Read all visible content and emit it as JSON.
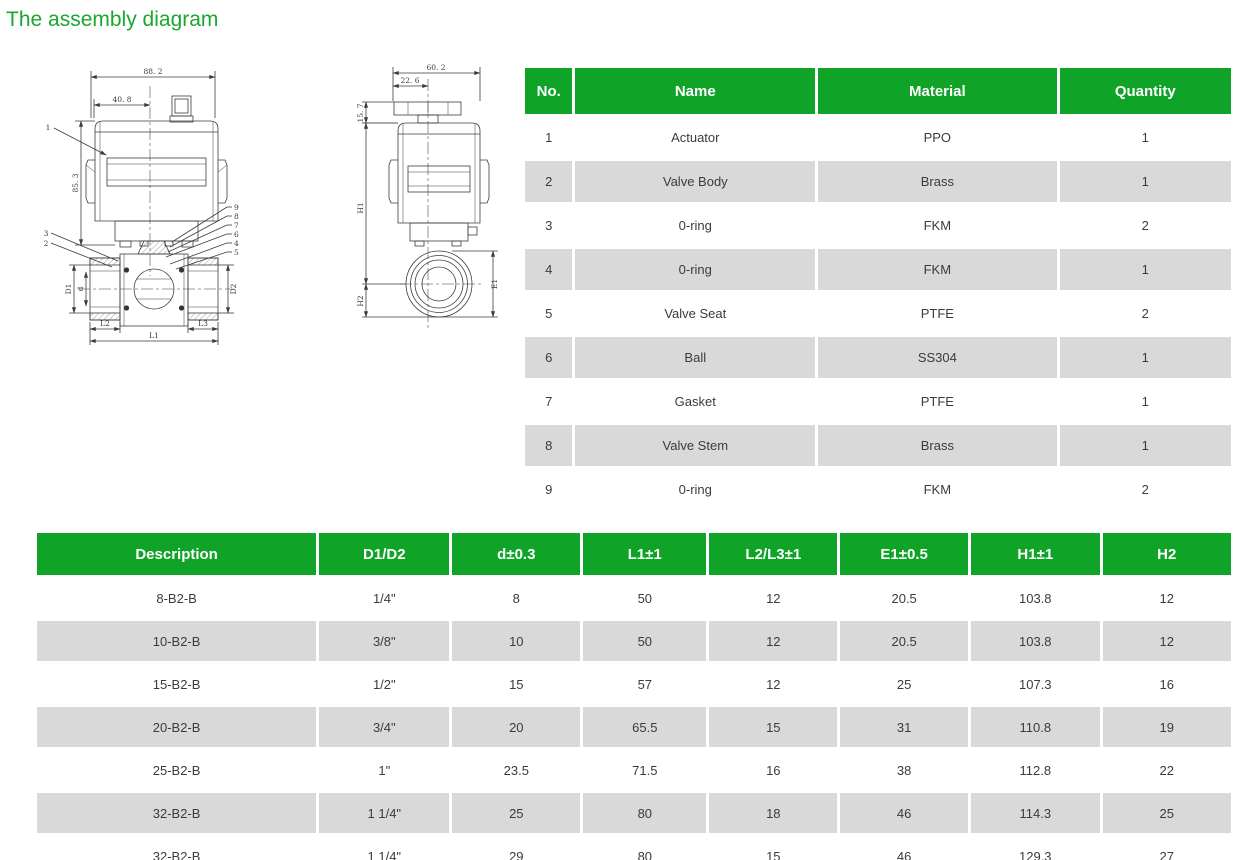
{
  "page": {
    "title": "The assembly diagram"
  },
  "colors": {
    "title_green": "#1aa72f",
    "header_green": "#0fa328",
    "row_gray": "#d9d9d9",
    "row_white": "#ffffff",
    "line_dark": "#3c3c3c"
  },
  "drawings": {
    "front_view": {
      "dim_width": "88. 2",
      "dim_half_width": "40. 8",
      "dim_height": "85. 3",
      "label_d1": "D1",
      "label_d": "d",
      "label_d2": "D2",
      "label_l2": "L2",
      "label_l3": "L3",
      "label_l1": "L1",
      "callouts": [
        "1",
        "2",
        "3",
        "4",
        "5",
        "6",
        "7",
        "8",
        "9"
      ]
    },
    "side_view": {
      "dim_width": "60. 2",
      "dim_handle": "22. 6",
      "dim_top": "15. 7",
      "label_h1": "H1",
      "label_h2": "H2",
      "label_e1": "E1"
    }
  },
  "parts_table": {
    "headers": [
      "No.",
      "Name",
      "Material",
      "Quantity"
    ],
    "rows": [
      [
        "1",
        "Actuator",
        "PPO",
        "1"
      ],
      [
        "2",
        "Valve Body",
        "Brass",
        "1"
      ],
      [
        "3",
        "0-ring",
        "FKM",
        "2"
      ],
      [
        "4",
        "0-ring",
        "FKM",
        "1"
      ],
      [
        "5",
        "Valve Seat",
        "PTFE",
        "2"
      ],
      [
        "6",
        "Ball",
        "SS304",
        "1"
      ],
      [
        "7",
        "Gasket",
        "PTFE",
        "1"
      ],
      [
        "8",
        "Valve Stem",
        "Brass",
        "1"
      ],
      [
        "9",
        "0-ring",
        "FKM",
        "2"
      ]
    ]
  },
  "dimensions_table": {
    "headers": [
      "Description",
      "D1/D2",
      "d±0.3",
      "L1±1",
      "L2/L3±1",
      "E1±0.5",
      "H1±1",
      "H2"
    ],
    "rows": [
      [
        "8-B2-B",
        "1/4\"",
        "8",
        "50",
        "12",
        "20.5",
        "103.8",
        "12"
      ],
      [
        "10-B2-B",
        "3/8\"",
        "10",
        "50",
        "12",
        "20.5",
        "103.8",
        "12"
      ],
      [
        "15-B2-B",
        "1/2\"",
        "15",
        "57",
        "12",
        "25",
        "107.3",
        "16"
      ],
      [
        "20-B2-B",
        "3/4\"",
        "20",
        "65.5",
        "15",
        "31",
        "110.8",
        "19"
      ],
      [
        "25-B2-B",
        "1\"",
        "23.5",
        "71.5",
        "16",
        "38",
        "112.8",
        "22"
      ],
      [
        "32-B2-B",
        "1 1/4\"",
        "25",
        "80",
        "18",
        "46",
        "114.3",
        "25"
      ],
      [
        "32-B2-B",
        "1 1/4\"",
        "29",
        "80",
        "15",
        "46",
        "129.3",
        "27"
      ]
    ]
  }
}
